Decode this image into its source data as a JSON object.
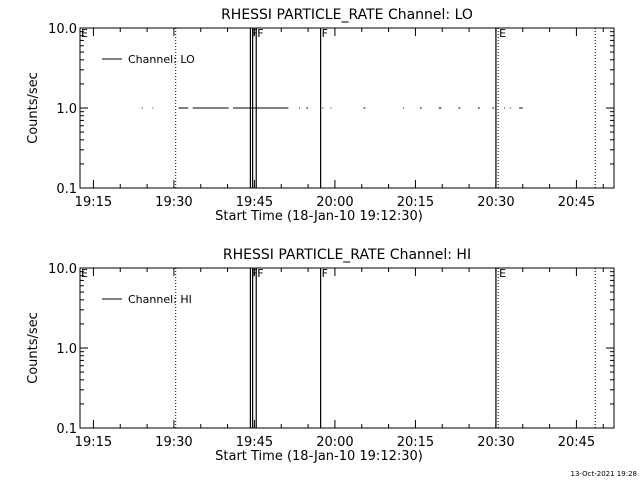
{
  "chart_data": [
    {
      "type": "line",
      "title": "RHESSI PARTICLE_RATE Channel: LO",
      "xlabel": "Start Time (18-Jan-10 19:12:30)",
      "ylabel": "Counts/sec",
      "x_range": [
        "19:12:30",
        "20:52:00"
      ],
      "x_ticks": [
        "19:15",
        "19:30",
        "19:45",
        "20:00",
        "20:15",
        "20:30",
        "20:45"
      ],
      "y_scale": "log",
      "ylim": [
        0.1,
        10.0
      ],
      "y_ticks": [
        "0.1",
        "1.0",
        "10.0"
      ],
      "legend": {
        "position": "top-left",
        "entries": [
          "Channel: LO"
        ]
      },
      "series": [
        {
          "name": "Channel: LO",
          "segments": [
            [
              [
                "19:24:00",
                1.0
              ],
              [
                "19:24:10",
                1.0
              ]
            ],
            [
              [
                "19:26:00",
                1.0
              ],
              [
                "19:26:10",
                1.0
              ]
            ],
            [
              [
                "19:30:50",
                1.0
              ],
              [
                "19:32:40",
                1.0
              ]
            ],
            [
              [
                "19:33:30",
                1.0
              ],
              [
                "19:40:10",
                1.0
              ]
            ],
            [
              [
                "19:41:00",
                1.0
              ],
              [
                "19:51:20",
                1.0
              ]
            ],
            [
              [
                "19:53:20",
                1.0
              ],
              [
                "19:53:30",
                1.0
              ]
            ],
            [
              [
                "19:54:40",
                1.0
              ],
              [
                "19:55:00",
                1.0
              ]
            ],
            [
              [
                "19:57:40",
                1.0
              ],
              [
                "19:57:50",
                1.0
              ]
            ],
            [
              [
                "19:59:10",
                1.0
              ],
              [
                "19:59:20",
                1.0
              ]
            ],
            [
              [
                "20:05:20",
                1.0
              ],
              [
                "20:05:40",
                1.0
              ]
            ],
            [
              [
                "20:12:40",
                1.0
              ],
              [
                "20:12:50",
                1.0
              ]
            ],
            [
              [
                "20:15:50",
                1.0
              ],
              [
                "20:16:10",
                1.0
              ]
            ],
            [
              [
                "20:19:20",
                1.0
              ],
              [
                "20:19:50",
                1.0
              ]
            ],
            [
              [
                "20:23:00",
                1.0
              ],
              [
                "20:23:20",
                1.0
              ]
            ],
            [
              [
                "20:26:40",
                1.0
              ],
              [
                "20:27:00",
                1.0
              ]
            ],
            [
              [
                "20:29:20",
                1.0
              ],
              [
                "20:29:40",
                1.0
              ]
            ],
            [
              [
                "20:31:30",
                1.0
              ],
              [
                "20:31:40",
                1.0
              ]
            ],
            [
              [
                "20:32:40",
                1.0
              ],
              [
                "20:32:50",
                1.0
              ]
            ],
            [
              [
                "20:34:20",
                1.0
              ],
              [
                "20:35:00",
                1.0
              ]
            ]
          ]
        }
      ],
      "markers": [
        {
          "label": "E",
          "time": "19:12:30",
          "style": "solid",
          "position": "left-edge"
        },
        {
          "label": "",
          "time": "19:30:20",
          "style": "dotted"
        },
        {
          "label": "F",
          "time": "19:44:15",
          "style": "solid"
        },
        {
          "label": "",
          "time": "19:44:40",
          "style": "solid"
        },
        {
          "label": "F",
          "time": "19:45:20",
          "style": "solid"
        },
        {
          "label": "F",
          "time": "19:57:20",
          "style": "solid"
        },
        {
          "label": "",
          "time": "20:30:00",
          "style": "solid"
        },
        {
          "label": "E",
          "time": "20:30:25",
          "style": "dotted"
        },
        {
          "label": "",
          "time": "20:48:30",
          "style": "dotted"
        }
      ]
    },
    {
      "type": "line",
      "title": "RHESSI PARTICLE_RATE Channel: HI",
      "xlabel": "Start Time (18-Jan-10 19:12:30)",
      "ylabel": "Counts/sec",
      "x_range": [
        "19:12:30",
        "20:52:00"
      ],
      "x_ticks": [
        "19:15",
        "19:30",
        "19:45",
        "20:00",
        "20:15",
        "20:30",
        "20:45"
      ],
      "y_scale": "log",
      "ylim": [
        0.1,
        10.0
      ],
      "y_ticks": [
        "0.1",
        "1.0",
        "10.0"
      ],
      "legend": {
        "position": "top-left",
        "entries": [
          "Channel: HI"
        ]
      },
      "series": [
        {
          "name": "Channel: HI",
          "segments": []
        }
      ],
      "markers": [
        {
          "label": "E",
          "time": "19:12:30",
          "style": "solid",
          "position": "left-edge"
        },
        {
          "label": "",
          "time": "19:30:20",
          "style": "dotted"
        },
        {
          "label": "F",
          "time": "19:44:15",
          "style": "solid"
        },
        {
          "label": "",
          "time": "19:44:40",
          "style": "solid"
        },
        {
          "label": "F",
          "time": "19:45:20",
          "style": "solid"
        },
        {
          "label": "F",
          "time": "19:57:20",
          "style": "solid"
        },
        {
          "label": "",
          "time": "20:30:00",
          "style": "solid"
        },
        {
          "label": "E",
          "time": "20:30:25",
          "style": "dotted"
        },
        {
          "label": "",
          "time": "20:48:30",
          "style": "dotted"
        }
      ]
    }
  ],
  "footer": {
    "timestamp": "13-Oct-2021 19:28"
  }
}
